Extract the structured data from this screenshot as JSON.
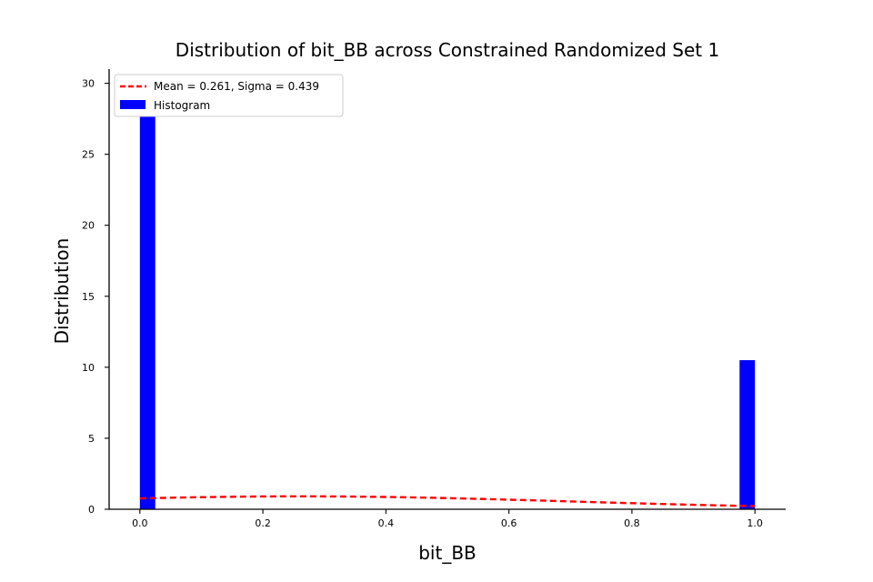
{
  "chart_data": {
    "type": "bar",
    "title": "Distribution of bit_BB across Constrained Randomized Set 1",
    "xlabel": "bit_BB",
    "ylabel": "Distribution",
    "xlim": [
      -0.05,
      1.05
    ],
    "ylim": [
      0,
      31
    ],
    "xticks": [
      0.0,
      0.2,
      0.4,
      0.6,
      0.8,
      1.0
    ],
    "xtick_labels": [
      "0.0",
      "0.2",
      "0.4",
      "0.6",
      "0.8",
      "1.0"
    ],
    "yticks": [
      0,
      5,
      10,
      15,
      20,
      25,
      30
    ],
    "ytick_labels": [
      "0",
      "5",
      "10",
      "15",
      "20",
      "25",
      "30"
    ],
    "grid": false,
    "legend_position": "top-left",
    "bins": [
      {
        "x0": 0.0,
        "x1": 0.025,
        "value": 29.6
      },
      {
        "x0": 0.975,
        "x1": 1.0,
        "value": 10.5
      }
    ],
    "bar_color": "#0000ff",
    "fit_line": {
      "label": "Mean = 0.261, Sigma = 0.439",
      "color": "#ff0000",
      "style": "dashed",
      "mean": 0.261,
      "sigma": 0.439
    },
    "legend": {
      "line_label": "Mean = 0.261, Sigma = 0.439",
      "bar_label": "Histogram"
    }
  }
}
